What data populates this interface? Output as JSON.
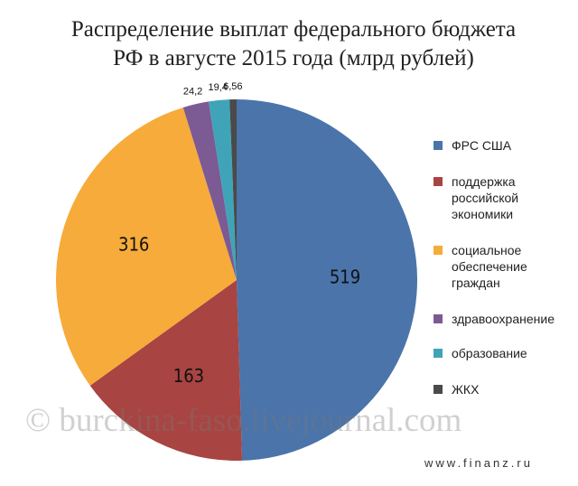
{
  "chart_data": {
    "type": "pie",
    "title": [
      "Распределение выплат федерального бюджета",
      "РФ в августе 2015 года (млрд рублей)"
    ],
    "categories": [
      "ФРС США",
      "поддержка российской экономики",
      "социальное обеспечение граждан",
      "здравоохранение",
      "образование",
      "ЖКХ"
    ],
    "values": [
      519,
      163,
      316,
      24.2,
      19.4,
      6.56
    ],
    "value_labels": [
      "519",
      "163",
      "316",
      "24,2",
      "19,4",
      "6,56"
    ],
    "colors": [
      "#4a74aa",
      "#a84442",
      "#f6ab3b",
      "#7c5a94",
      "#3fa4b8",
      "#4a4a4a"
    ],
    "legend": "right",
    "watermarks": [
      "© burckina-faso.livejournal.com",
      "www.finanz.ru"
    ]
  }
}
